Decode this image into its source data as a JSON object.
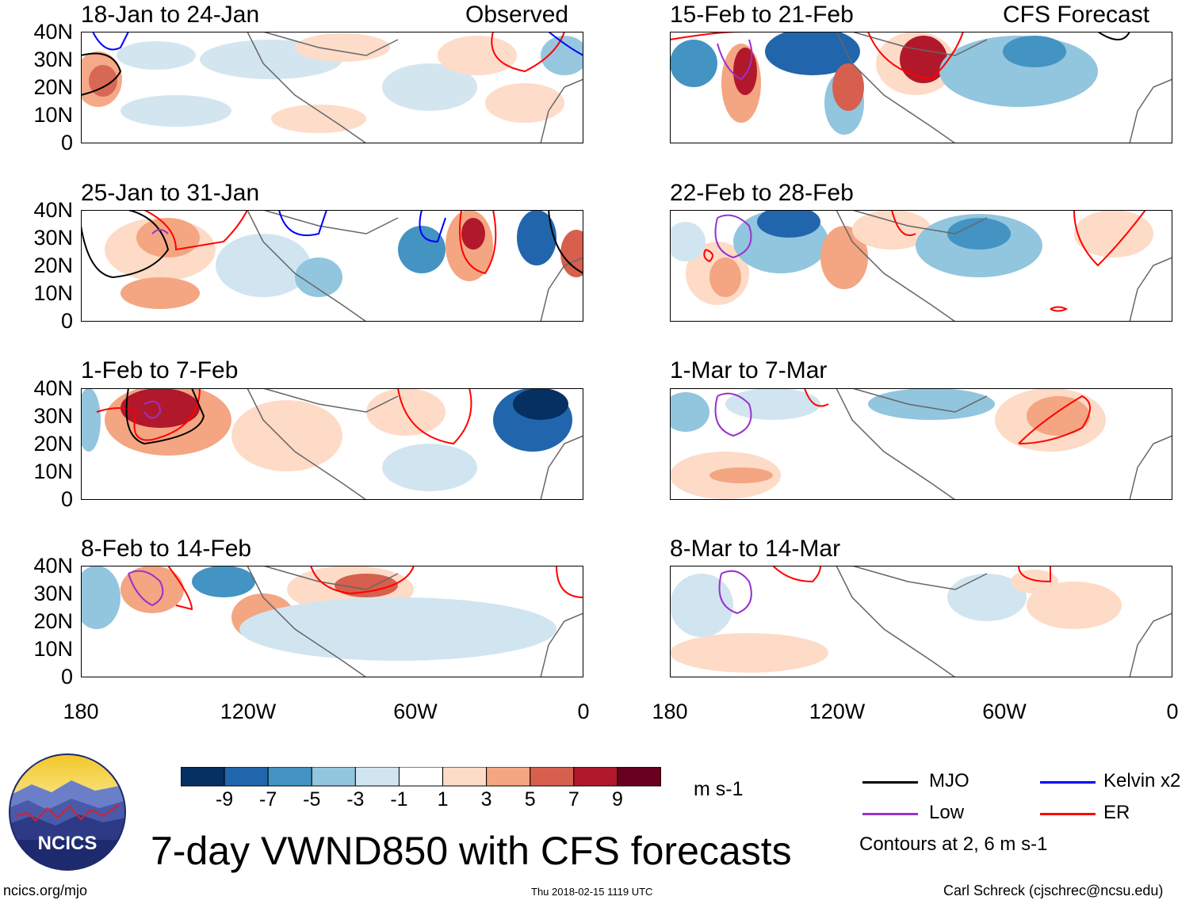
{
  "panels": [
    {
      "id": "p1",
      "date": "18-Jan to 24-Jan",
      "tag": "Observed"
    },
    {
      "id": "p2",
      "date": "25-Jan to 31-Jan",
      "tag": ""
    },
    {
      "id": "p3",
      "date": "1-Feb to 7-Feb",
      "tag": ""
    },
    {
      "id": "p4",
      "date": "8-Feb to 14-Feb",
      "tag": ""
    },
    {
      "id": "p5",
      "date": "15-Feb to 21-Feb",
      "tag": "CFS Forecast"
    },
    {
      "id": "p6",
      "date": "22-Feb to 28-Feb",
      "tag": ""
    },
    {
      "id": "p7",
      "date": "1-Mar to 7-Mar",
      "tag": ""
    },
    {
      "id": "p8",
      "date": "8-Mar to 14-Mar",
      "tag": ""
    }
  ],
  "lat_labels": [
    "40N",
    "30N",
    "20N",
    "10N",
    "0"
  ],
  "lon_labels": [
    "180",
    "120W",
    "60W",
    "0"
  ],
  "colorbar": {
    "labels": [
      "-9",
      "-7",
      "-5",
      "-3",
      "-1",
      "1",
      "3",
      "5",
      "7",
      "9"
    ],
    "colors": [
      "#053061",
      "#2166ac",
      "#4393c3",
      "#92c5de",
      "#d1e5f0",
      "#ffffff",
      "#fddbc7",
      "#f4a582",
      "#d6604d",
      "#b2182b",
      "#67001f"
    ],
    "units": "m s-1"
  },
  "legend": {
    "mjo": {
      "label": "MJO",
      "color": "#000000"
    },
    "kelvin": {
      "label": "Kelvin x2",
      "color": "#0000ff"
    },
    "low": {
      "label": "Low",
      "color": "#9932cc"
    },
    "er": {
      "label": "ER",
      "color": "#ff0000"
    },
    "note": "Contours at 2, 6 m s-1"
  },
  "logo": {
    "text": "NCICS"
  },
  "title": "7-day VWND850 with CFS forecasts",
  "footer": {
    "url": "ncics.org/mjo",
    "timestamp": "Thu 2018-02-15 1119 UTC",
    "credit": "Carl Schreck (cjschrec@ncsu.edu)"
  }
}
